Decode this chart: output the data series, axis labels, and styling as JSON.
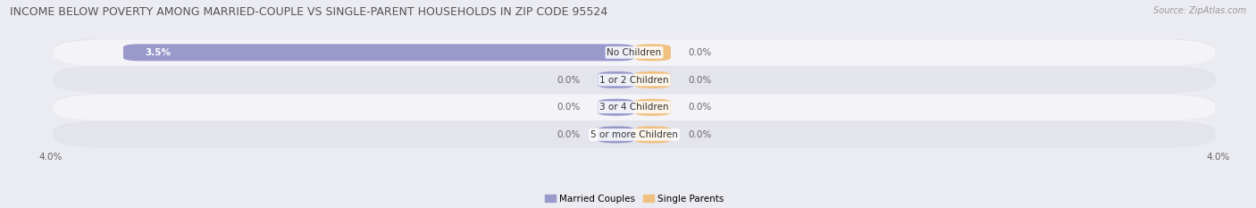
{
  "title": "INCOME BELOW POVERTY AMONG MARRIED-COUPLE VS SINGLE-PARENT HOUSEHOLDS IN ZIP CODE 95524",
  "source": "Source: ZipAtlas.com",
  "categories": [
    "No Children",
    "1 or 2 Children",
    "3 or 4 Children",
    "5 or more Children"
  ],
  "married_values": [
    3.5,
    0.0,
    0.0,
    0.0
  ],
  "single_values": [
    0.0,
    0.0,
    0.0,
    0.0
  ],
  "married_color": "#9999cc",
  "single_color": "#f0c080",
  "xlim_left": -4.0,
  "xlim_right": 4.0,
  "bar_height": 0.62,
  "background_color": "#ebebf2",
  "row_bg_light": "#f4f4f8",
  "row_bg_dark": "#e4e4ed",
  "title_fontsize": 9.0,
  "label_fontsize": 7.5,
  "cat_fontsize": 7.5,
  "tick_fontsize": 7.5,
  "legend_fontsize": 7.5,
  "source_fontsize": 7.0,
  "stub_size": 0.25
}
